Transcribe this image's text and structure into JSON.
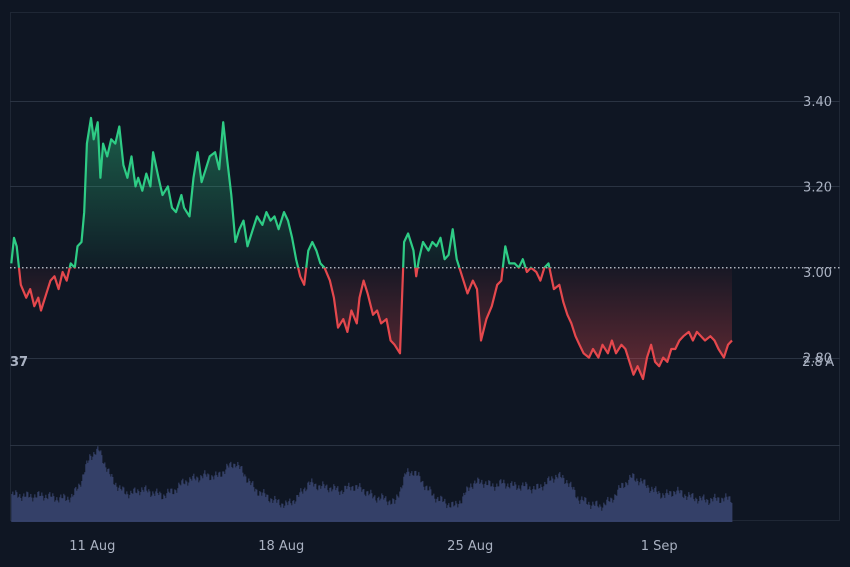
{
  "chart_data": {
    "type": "area",
    "baseline": 3.01,
    "y_ticks": [
      "3.40",
      "3.20",
      "3.00",
      "2.80"
    ],
    "y_tick_values": [
      3.4,
      3.2,
      3.0,
      2.8
    ],
    "x_ticks": [
      "11 Aug",
      "18 Aug",
      "25 Aug",
      "1 Sep"
    ],
    "x_tick_days": [
      11,
      18,
      25,
      32
    ],
    "x_range_days": [
      7.95,
      38.7
    ],
    "ylim": [
      2.6,
      3.6
    ],
    "left_clipped_label": "37",
    "right_clipped_label": "2.8 A",
    "colors": {
      "background": "#0f1623",
      "grid": "#2a3342",
      "up": "#2ecc85",
      "down": "#e5484d",
      "volume": "#3a4670",
      "text": "#aab2c2"
    },
    "series": [
      {
        "values": [
          [
            8.0,
            3.02
          ],
          [
            8.1,
            3.08
          ],
          [
            8.2,
            3.06
          ],
          [
            8.35,
            2.97
          ],
          [
            8.55,
            2.94
          ],
          [
            8.7,
            2.96
          ],
          [
            8.85,
            2.92
          ],
          [
            9.0,
            2.94
          ],
          [
            9.1,
            2.91
          ],
          [
            9.3,
            2.95
          ],
          [
            9.45,
            2.98
          ],
          [
            9.6,
            2.99
          ],
          [
            9.75,
            2.96
          ],
          [
            9.9,
            3.0
          ],
          [
            10.05,
            2.98
          ],
          [
            10.2,
            3.02
          ],
          [
            10.35,
            3.01
          ],
          [
            10.45,
            3.06
          ],
          [
            10.6,
            3.07
          ],
          [
            10.7,
            3.14
          ],
          [
            10.8,
            3.3
          ],
          [
            10.95,
            3.36
          ],
          [
            11.05,
            3.31
          ],
          [
            11.2,
            3.35
          ],
          [
            11.3,
            3.22
          ],
          [
            11.4,
            3.3
          ],
          [
            11.55,
            3.27
          ],
          [
            11.7,
            3.31
          ],
          [
            11.85,
            3.3
          ],
          [
            12.0,
            3.34
          ],
          [
            12.15,
            3.25
          ],
          [
            12.3,
            3.22
          ],
          [
            12.45,
            3.27
          ],
          [
            12.6,
            3.2
          ],
          [
            12.7,
            3.22
          ],
          [
            12.85,
            3.19
          ],
          [
            13.0,
            3.23
          ],
          [
            13.15,
            3.2
          ],
          [
            13.25,
            3.28
          ],
          [
            13.45,
            3.22
          ],
          [
            13.6,
            3.18
          ],
          [
            13.8,
            3.2
          ],
          [
            13.95,
            3.15
          ],
          [
            14.1,
            3.14
          ],
          [
            14.3,
            3.18
          ],
          [
            14.4,
            3.15
          ],
          [
            14.6,
            3.13
          ],
          [
            14.75,
            3.22
          ],
          [
            14.9,
            3.28
          ],
          [
            15.05,
            3.21
          ],
          [
            15.2,
            3.24
          ],
          [
            15.35,
            3.27
          ],
          [
            15.55,
            3.28
          ],
          [
            15.7,
            3.24
          ],
          [
            15.85,
            3.35
          ],
          [
            16.0,
            3.26
          ],
          [
            16.15,
            3.18
          ],
          [
            16.3,
            3.07
          ],
          [
            16.45,
            3.1
          ],
          [
            16.6,
            3.12
          ],
          [
            16.75,
            3.06
          ],
          [
            16.95,
            3.1
          ],
          [
            17.1,
            3.13
          ],
          [
            17.3,
            3.11
          ],
          [
            17.45,
            3.14
          ],
          [
            17.6,
            3.12
          ],
          [
            17.75,
            3.13
          ],
          [
            17.9,
            3.1
          ],
          [
            18.1,
            3.14
          ],
          [
            18.25,
            3.12
          ],
          [
            18.4,
            3.08
          ],
          [
            18.55,
            3.03
          ],
          [
            18.7,
            2.99
          ],
          [
            18.85,
            2.97
          ],
          [
            19.0,
            3.05
          ],
          [
            19.15,
            3.07
          ],
          [
            19.3,
            3.05
          ],
          [
            19.45,
            3.02
          ],
          [
            19.6,
            3.01
          ],
          [
            19.8,
            2.98
          ],
          [
            19.95,
            2.94
          ],
          [
            20.1,
            2.87
          ],
          [
            20.3,
            2.89
          ],
          [
            20.45,
            2.86
          ],
          [
            20.6,
            2.91
          ],
          [
            20.8,
            2.88
          ],
          [
            20.9,
            2.94
          ],
          [
            21.05,
            2.98
          ],
          [
            21.2,
            2.95
          ],
          [
            21.4,
            2.9
          ],
          [
            21.55,
            2.91
          ],
          [
            21.7,
            2.88
          ],
          [
            21.9,
            2.89
          ],
          [
            22.05,
            2.84
          ],
          [
            22.2,
            2.83
          ],
          [
            22.4,
            2.81
          ],
          [
            22.55,
            3.07
          ],
          [
            22.7,
            3.09
          ],
          [
            22.9,
            3.05
          ],
          [
            23.0,
            2.99
          ],
          [
            23.1,
            3.03
          ],
          [
            23.25,
            3.07
          ],
          [
            23.45,
            3.05
          ],
          [
            23.6,
            3.07
          ],
          [
            23.75,
            3.06
          ],
          [
            23.9,
            3.08
          ],
          [
            24.05,
            3.03
          ],
          [
            24.2,
            3.04
          ],
          [
            24.35,
            3.1
          ],
          [
            24.5,
            3.03
          ],
          [
            24.7,
            2.99
          ],
          [
            24.9,
            2.95
          ],
          [
            25.1,
            2.98
          ],
          [
            25.25,
            2.96
          ],
          [
            25.4,
            2.84
          ],
          [
            25.6,
            2.89
          ],
          [
            25.8,
            2.92
          ],
          [
            26.0,
            2.97
          ],
          [
            26.15,
            2.98
          ],
          [
            26.3,
            3.06
          ],
          [
            26.45,
            3.02
          ],
          [
            26.65,
            3.02
          ],
          [
            26.8,
            3.01
          ],
          [
            26.95,
            3.03
          ],
          [
            27.1,
            3.0
          ],
          [
            27.25,
            3.01
          ],
          [
            27.45,
            3.0
          ],
          [
            27.6,
            2.98
          ],
          [
            27.75,
            3.01
          ],
          [
            27.9,
            3.02
          ],
          [
            28.1,
            2.96
          ],
          [
            28.3,
            2.97
          ],
          [
            28.45,
            2.93
          ],
          [
            28.6,
            2.9
          ],
          [
            28.75,
            2.88
          ],
          [
            28.9,
            2.85
          ],
          [
            29.05,
            2.83
          ],
          [
            29.2,
            2.81
          ],
          [
            29.4,
            2.8
          ],
          [
            29.55,
            2.82
          ],
          [
            29.75,
            2.8
          ],
          [
            29.9,
            2.83
          ],
          [
            30.1,
            2.81
          ],
          [
            30.25,
            2.84
          ],
          [
            30.4,
            2.81
          ],
          [
            30.6,
            2.83
          ],
          [
            30.75,
            2.82
          ],
          [
            30.9,
            2.79
          ],
          [
            31.05,
            2.76
          ],
          [
            31.2,
            2.78
          ],
          [
            31.4,
            2.75
          ],
          [
            31.55,
            2.8
          ],
          [
            31.7,
            2.83
          ],
          [
            31.85,
            2.79
          ],
          [
            32.0,
            2.78
          ],
          [
            32.15,
            2.8
          ],
          [
            32.3,
            2.79
          ],
          [
            32.45,
            2.82
          ],
          [
            32.6,
            2.82
          ],
          [
            32.75,
            2.84
          ],
          [
            32.9,
            2.85
          ],
          [
            33.1,
            2.86
          ],
          [
            33.25,
            2.84
          ],
          [
            33.4,
            2.86
          ],
          [
            33.55,
            2.85
          ],
          [
            33.7,
            2.84
          ],
          [
            33.9,
            2.85
          ],
          [
            34.05,
            2.84
          ],
          [
            34.2,
            2.82
          ],
          [
            34.4,
            2.8
          ],
          [
            34.55,
            2.83
          ],
          [
            34.7,
            2.84
          ]
        ]
      }
    ],
    "volume": [
      [
        8.0,
        0.35
      ],
      [
        8.6,
        0.33
      ],
      [
        9.2,
        0.34
      ],
      [
        9.8,
        0.3
      ],
      [
        10.25,
        0.32
      ],
      [
        10.6,
        0.55
      ],
      [
        10.9,
        0.85
      ],
      [
        11.25,
        0.92
      ],
      [
        11.6,
        0.62
      ],
      [
        12.0,
        0.42
      ],
      [
        12.4,
        0.36
      ],
      [
        12.8,
        0.42
      ],
      [
        13.2,
        0.38
      ],
      [
        13.6,
        0.34
      ],
      [
        14.0,
        0.4
      ],
      [
        14.4,
        0.52
      ],
      [
        14.8,
        0.56
      ],
      [
        15.2,
        0.6
      ],
      [
        15.6,
        0.58
      ],
      [
        16.0,
        0.7
      ],
      [
        16.3,
        0.76
      ],
      [
        16.6,
        0.62
      ],
      [
        17.0,
        0.42
      ],
      [
        17.4,
        0.34
      ],
      [
        17.8,
        0.26
      ],
      [
        18.2,
        0.22
      ],
      [
        18.6,
        0.32
      ],
      [
        19.0,
        0.5
      ],
      [
        19.4,
        0.46
      ],
      [
        19.8,
        0.44
      ],
      [
        20.2,
        0.4
      ],
      [
        20.6,
        0.46
      ],
      [
        21.0,
        0.42
      ],
      [
        21.4,
        0.32
      ],
      [
        21.8,
        0.3
      ],
      [
        22.2,
        0.24
      ],
      [
        22.6,
        0.62
      ],
      [
        22.9,
        0.65
      ],
      [
        23.2,
        0.52
      ],
      [
        23.6,
        0.34
      ],
      [
        24.0,
        0.26
      ],
      [
        24.4,
        0.2
      ],
      [
        24.7,
        0.3
      ],
      [
        25.0,
        0.48
      ],
      [
        25.4,
        0.52
      ],
      [
        25.8,
        0.46
      ],
      [
        26.2,
        0.5
      ],
      [
        26.6,
        0.46
      ],
      [
        27.0,
        0.46
      ],
      [
        27.4,
        0.42
      ],
      [
        27.8,
        0.5
      ],
      [
        28.2,
        0.6
      ],
      [
        28.6,
        0.52
      ],
      [
        29.0,
        0.3
      ],
      [
        29.4,
        0.24
      ],
      [
        29.8,
        0.2
      ],
      [
        30.2,
        0.28
      ],
      [
        30.6,
        0.46
      ],
      [
        31.0,
        0.58
      ],
      [
        31.4,
        0.5
      ],
      [
        31.8,
        0.4
      ],
      [
        32.2,
        0.34
      ],
      [
        32.6,
        0.4
      ],
      [
        33.0,
        0.34
      ],
      [
        33.4,
        0.3
      ],
      [
        33.8,
        0.28
      ],
      [
        34.2,
        0.3
      ],
      [
        34.7,
        0.3
      ]
    ]
  }
}
